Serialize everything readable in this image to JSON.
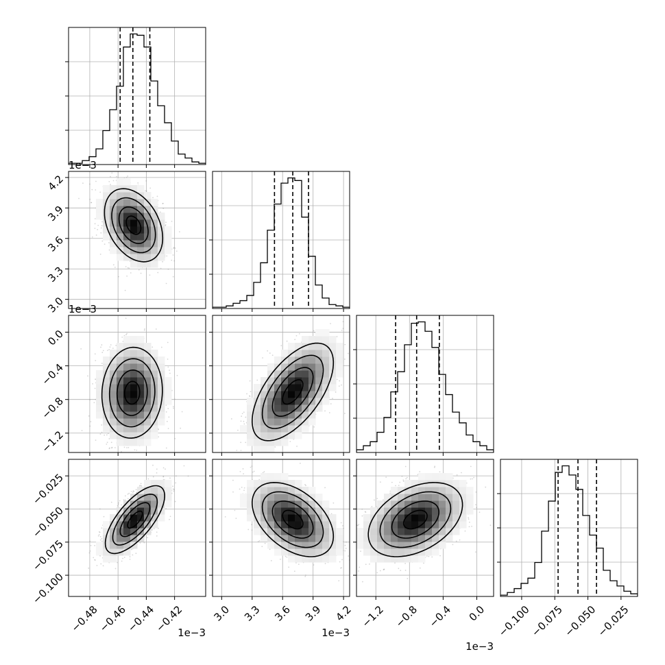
{
  "chart_data": {
    "type": "corner",
    "n_params": 4,
    "params": [
      {
        "range": [
          -0.495,
          -0.398
        ],
        "ticks": [
          -0.48,
          -0.46,
          -0.44,
          -0.42
        ],
        "tick_labels": [
          "−0.48",
          "−0.46",
          "−0.44",
          "−0.42"
        ],
        "offset_text": "1e−3",
        "quantiles": [
          -0.4585,
          -0.4495,
          -0.4375
        ]
      },
      {
        "range": [
          2.91,
          4.26
        ],
        "ticks": [
          3.0,
          3.3,
          3.6,
          3.9,
          4.2
        ],
        "tick_labels": [
          "3.0",
          "3.3",
          "3.6",
          "3.9",
          "4.2"
        ],
        "offset_text": "1e−3",
        "quantiles": [
          3.52,
          3.7,
          3.855
        ]
      },
      {
        "range": [
          -1.43,
          0.2
        ],
        "ticks": [
          -1.2,
          -0.8,
          -0.4,
          0.0
        ],
        "tick_labels": [
          "−1.2",
          "−0.8",
          "−0.4",
          "0.0"
        ],
        "offset_text": "1e−3",
        "quantiles": [
          -0.965,
          -0.715,
          -0.445
        ]
      },
      {
        "range": [
          -0.116,
          -0.0125
        ],
        "ticks": [
          -0.1,
          -0.075,
          -0.05,
          -0.025
        ],
        "tick_labels": [
          "−0.100",
          "−0.075",
          "−0.050",
          "−0.025"
        ],
        "offset_text": "",
        "quantiles": [
          -0.0725,
          -0.0575,
          -0.0435
        ]
      }
    ],
    "histograms": [
      {
        "counts": [
          1,
          1,
          3,
          6,
          12,
          26,
          42,
          60,
          90,
          100,
          99,
          90,
          64,
          45,
          32,
          18,
          8,
          5,
          2,
          1
        ]
      },
      {
        "counts": [
          1,
          1,
          2,
          4,
          6,
          10,
          20,
          35,
          60,
          80,
          96,
          100,
          98,
          70,
          40,
          18,
          8,
          3,
          2,
          1
        ]
      },
      {
        "counts": [
          2,
          5,
          8,
          15,
          26,
          45,
          60,
          80,
          96,
          97,
          90,
          78,
          58,
          43,
          30,
          22,
          13,
          8,
          5,
          2
        ]
      },
      {
        "counts": [
          1,
          3,
          6,
          10,
          14,
          26,
          50,
          73,
          95,
          100,
          93,
          82,
          62,
          47,
          37,
          20,
          12,
          8,
          4,
          2
        ]
      }
    ],
    "pairs": [
      {
        "row": 1,
        "col": 0,
        "mean": [
          -0.449,
          3.73
        ],
        "sd": [
          0.0103,
          0.18
        ],
        "rho": -0.35
      },
      {
        "row": 2,
        "col": 0,
        "mean": [
          -0.45,
          -0.72
        ],
        "sd": [
          0.0107,
          0.27
        ],
        "rho": 0.05
      },
      {
        "row": 2,
        "col": 1,
        "mean": [
          3.7,
          -0.71
        ],
        "sd": [
          0.2,
          0.29
        ],
        "rho": 0.6
      },
      {
        "row": 3,
        "col": 0,
        "mean": [
          -0.448,
          -0.058
        ],
        "sd": [
          0.0105,
          0.0128
        ],
        "rho": 0.7
      },
      {
        "row": 3,
        "col": 1,
        "mean": [
          3.7,
          -0.058
        ],
        "sd": [
          0.2,
          0.014
        ],
        "rho": -0.45
      },
      {
        "row": 3,
        "col": 2,
        "mean": [
          -0.73,
          -0.058
        ],
        "sd": [
          0.28,
          0.014
        ],
        "rho": 0.4
      }
    ],
    "contour_levels": [
      0.5,
      1.0,
      1.5,
      2.0
    ],
    "quantile_line_style": "dashed",
    "grid": true
  }
}
